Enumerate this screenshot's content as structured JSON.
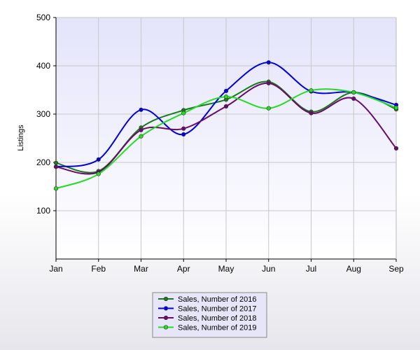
{
  "chart_data": {
    "type": "line",
    "title": "",
    "xlabel": "",
    "ylabel": "Listings",
    "categories": [
      "Jan",
      "Feb",
      "Mar",
      "Apr",
      "May",
      "Jun",
      "Jul",
      "Aug",
      "Sep"
    ],
    "ylim": [
      0,
      500
    ],
    "yticks": [
      100,
      200,
      300,
      400,
      500
    ],
    "grid": true,
    "legend_position": "bottom-center",
    "smooth": true,
    "series": [
      {
        "name": "Sales, Number of 2016",
        "color": "#1a7a1a",
        "values": [
          199,
          182,
          272,
          308,
          330,
          367,
          305,
          345,
          310
        ]
      },
      {
        "name": "Sales, Number of 2017",
        "color": "#0000e0",
        "values": [
          191,
          206,
          309,
          258,
          348,
          407,
          347,
          345,
          319
        ]
      },
      {
        "name": "Sales, Number of 2018",
        "color": "#6a0a6a",
        "values": [
          191,
          180,
          267,
          270,
          316,
          364,
          302,
          332,
          229
        ]
      },
      {
        "name": "Sales, Number of 2019",
        "color": "#22dd22",
        "values": [
          146,
          176,
          254,
          302,
          336,
          312,
          349,
          345,
          313
        ]
      }
    ]
  }
}
